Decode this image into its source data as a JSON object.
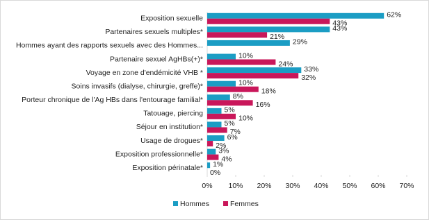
{
  "chart_data": {
    "type": "hbar",
    "categories": [
      "Exposition sexuelle",
      "Partenaires sexuels multiples*",
      "Hommes ayant des rapports sexuels avec des Hommes...",
      "Partenaire sexuel AgHBs(+)*",
      "Voyage en zone d'endémicité VHB *",
      "Soins invasifs (dialyse, chirurgie, greffe)*",
      "Porteur chronique de l'Ag HBs dans l'entourage familial*",
      "Tatouage, piercing",
      "Séjour en institution*",
      "Usage de drogues*",
      "Exposition professionnelle*",
      "Exposition périnatale*"
    ],
    "series": [
      {
        "name": "Hommes",
        "color": "#1b9dc4",
        "values": [
          62,
          43,
          29,
          10,
          33,
          10,
          8,
          5,
          5,
          6,
          3,
          1
        ],
        "value_labels": [
          "62%",
          "43%",
          "29%",
          "10%",
          "33%",
          "10%",
          "8%",
          "5%",
          "5%",
          "6%",
          "3%",
          "1%"
        ]
      },
      {
        "name": "Femmes",
        "color": "#c9175a",
        "values": [
          43,
          21,
          null,
          24,
          32,
          18,
          16,
          10,
          7,
          2,
          4,
          0
        ],
        "value_labels": [
          "43%",
          "21%",
          null,
          "24%",
          "32%",
          "18%",
          "16%",
          "10%",
          "7%",
          "2%",
          "4%",
          "0%"
        ]
      }
    ],
    "xlim": [
      0,
      70
    ],
    "xticks": [
      {
        "value": 0,
        "label": "0%"
      },
      {
        "value": 10,
        "label": "10%"
      },
      {
        "value": 20,
        "label": "20%"
      },
      {
        "value": 30,
        "label": "30%"
      },
      {
        "value": 40,
        "label": "40%"
      },
      {
        "value": 50,
        "label": "50%"
      },
      {
        "value": 60,
        "label": "60%"
      },
      {
        "value": 70,
        "label": "70%"
      }
    ],
    "legend": "bottom"
  }
}
